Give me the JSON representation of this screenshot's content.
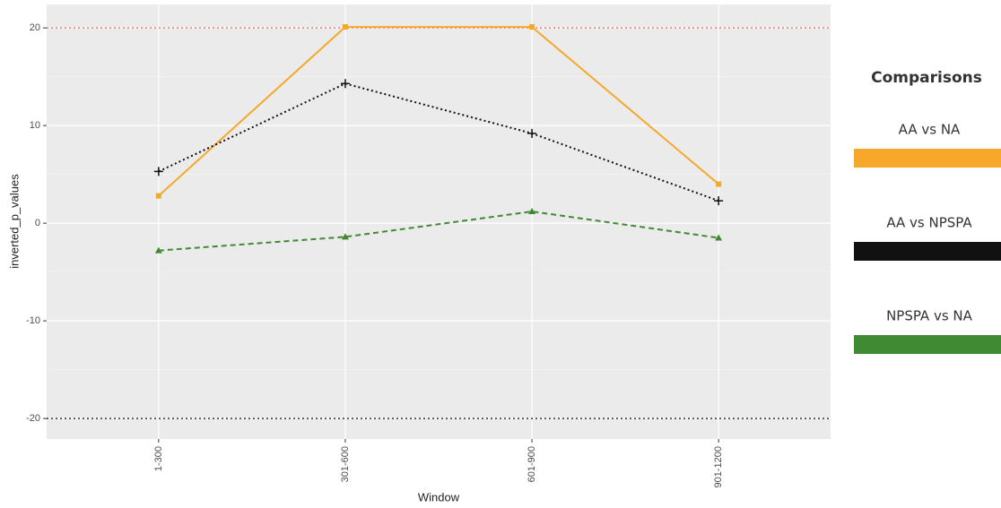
{
  "chart_data": {
    "type": "line",
    "x_label": "Window",
    "y_label": "inverted_p_values",
    "categories": [
      "1-300",
      "301-600",
      "601-900",
      "901-1200"
    ],
    "series": [
      {
        "name": "AA vs NA",
        "color": "#f5a829",
        "linestyle": "solid",
        "marker": "square",
        "values": [
          2.8,
          20.1,
          20.1,
          4.0
        ]
      },
      {
        "name": "AA vs NPSPA",
        "color": "#111111",
        "linestyle": "dotted",
        "marker": "plus",
        "values": [
          5.3,
          14.3,
          9.2,
          2.3
        ]
      },
      {
        "name": "NPSPA vs NA",
        "color": "#3f8a32",
        "linestyle": "dashed",
        "marker": "triangle",
        "values": [
          -2.8,
          -1.4,
          1.2,
          -1.5
        ]
      }
    ],
    "ylim": [
      -22.1,
      22.4
    ],
    "yticks": [
      -20,
      -10,
      0,
      10,
      20
    ],
    "minor_yticks": [
      -15,
      -5,
      5,
      15
    ],
    "grid": true,
    "hlines": [
      {
        "value": 20,
        "color": "#f8766d"
      },
      {
        "value": -20,
        "color": "#333333"
      }
    ],
    "legend_title": "Comparisons",
    "legend_position": "right"
  }
}
